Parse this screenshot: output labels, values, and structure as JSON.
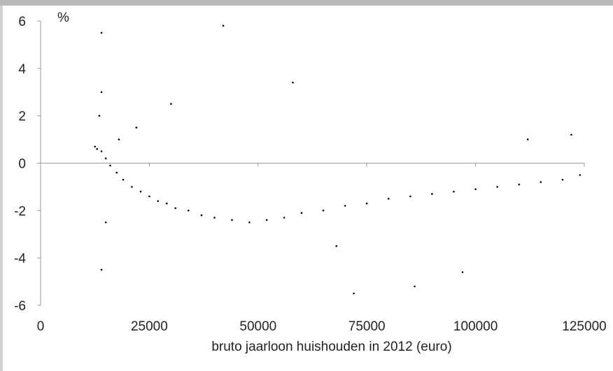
{
  "chart_data": {
    "type": "scatter",
    "title": "",
    "xlabel": "bruto jaarloon huishouden in 2012 (euro)",
    "ylabel": "%",
    "xlim": [
      0,
      125000
    ],
    "ylim": [
      -6,
      6
    ],
    "x_ticks": [
      "0",
      "25000",
      "50000",
      "75000",
      "100000",
      "125000"
    ],
    "y_ticks": [
      "6",
      "4",
      "2",
      "0",
      "-2",
      "-4",
      "-6"
    ],
    "grid": false,
    "legend": "none",
    "colors": {
      "points": "#000000",
      "axes": "#9a9a9a",
      "text": "#222222"
    },
    "series": [
      {
        "x": [
          14000,
          13000,
          12500,
          15000,
          16000,
          17500,
          19000,
          21000,
          23000,
          25000,
          27000,
          29000,
          31000,
          34000,
          37000,
          40000,
          44000,
          48000,
          52000,
          56000,
          60000,
          65000,
          70000,
          75000,
          80000,
          85000,
          90000,
          95000,
          100000,
          105000,
          110000,
          115000,
          120000,
          124000,
          14000,
          14000,
          14000,
          15000,
          13500,
          18000,
          22000,
          30000,
          42000,
          58000,
          68000,
          72000,
          86000,
          97000,
          112000,
          122000
        ],
        "y": [
          0.5,
          0.6,
          0.7,
          0.2,
          -0.1,
          -0.4,
          -0.7,
          -1.0,
          -1.2,
          -1.4,
          -1.6,
          -1.7,
          -1.9,
          -2.0,
          -2.2,
          -2.3,
          -2.4,
          -2.5,
          -2.4,
          -2.3,
          -2.1,
          -2.0,
          -1.8,
          -1.7,
          -1.5,
          -1.4,
          -1.3,
          -1.2,
          -1.1,
          -1.0,
          -0.9,
          -0.8,
          -0.7,
          -0.5,
          3.0,
          -4.5,
          5.5,
          -2.5,
          2.0,
          1.0,
          1.5,
          2.5,
          5.8,
          3.4,
          -3.5,
          -5.5,
          -5.2,
          -4.6,
          1.0,
          1.2
        ]
      }
    ]
  }
}
